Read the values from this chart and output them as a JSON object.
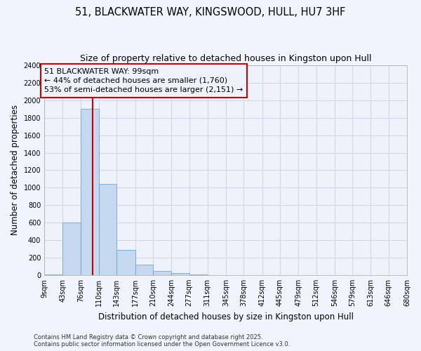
{
  "title": "51, BLACKWATER WAY, KINGSWOOD, HULL, HU7 3HF",
  "subtitle": "Size of property relative to detached houses in Kingston upon Hull",
  "xlabel": "Distribution of detached houses by size in Kingston upon Hull",
  "ylabel": "Number of detached properties",
  "bin_edges": [
    9,
    43,
    76,
    110,
    143,
    177,
    210,
    244,
    277,
    311,
    345,
    378,
    412,
    445,
    479,
    512,
    546,
    579,
    613,
    646,
    680
  ],
  "bar_heights": [
    10,
    600,
    1900,
    1040,
    290,
    120,
    50,
    20,
    5,
    2,
    1,
    0,
    0,
    0,
    0,
    0,
    0,
    0,
    0,
    0
  ],
  "bar_color": "#c5d8f0",
  "bar_edgecolor": "#6699cc",
  "grid_color": "#d0d8e8",
  "background_color": "#f0f4fc",
  "plot_bg_color": "#eef2fa",
  "property_size": 99,
  "vline_color": "#cc0000",
  "annotation_text": "51 BLACKWATER WAY: 99sqm\n← 44% of detached houses are smaller (1,760)\n53% of semi-detached houses are larger (2,151) →",
  "annotation_box_edgecolor": "#cc0000",
  "ylim": [
    0,
    2400
  ],
  "yticks": [
    0,
    200,
    400,
    600,
    800,
    1000,
    1200,
    1400,
    1600,
    1800,
    2000,
    2200,
    2400
  ],
  "footer": "Contains HM Land Registry data © Crown copyright and database right 2025.\nContains public sector information licensed under the Open Government Licence v3.0.",
  "title_fontsize": 10.5,
  "subtitle_fontsize": 9,
  "tick_label_fontsize": 7,
  "ylabel_fontsize": 8.5,
  "xlabel_fontsize": 8.5,
  "annotation_fontsize": 8,
  "footer_fontsize": 6
}
